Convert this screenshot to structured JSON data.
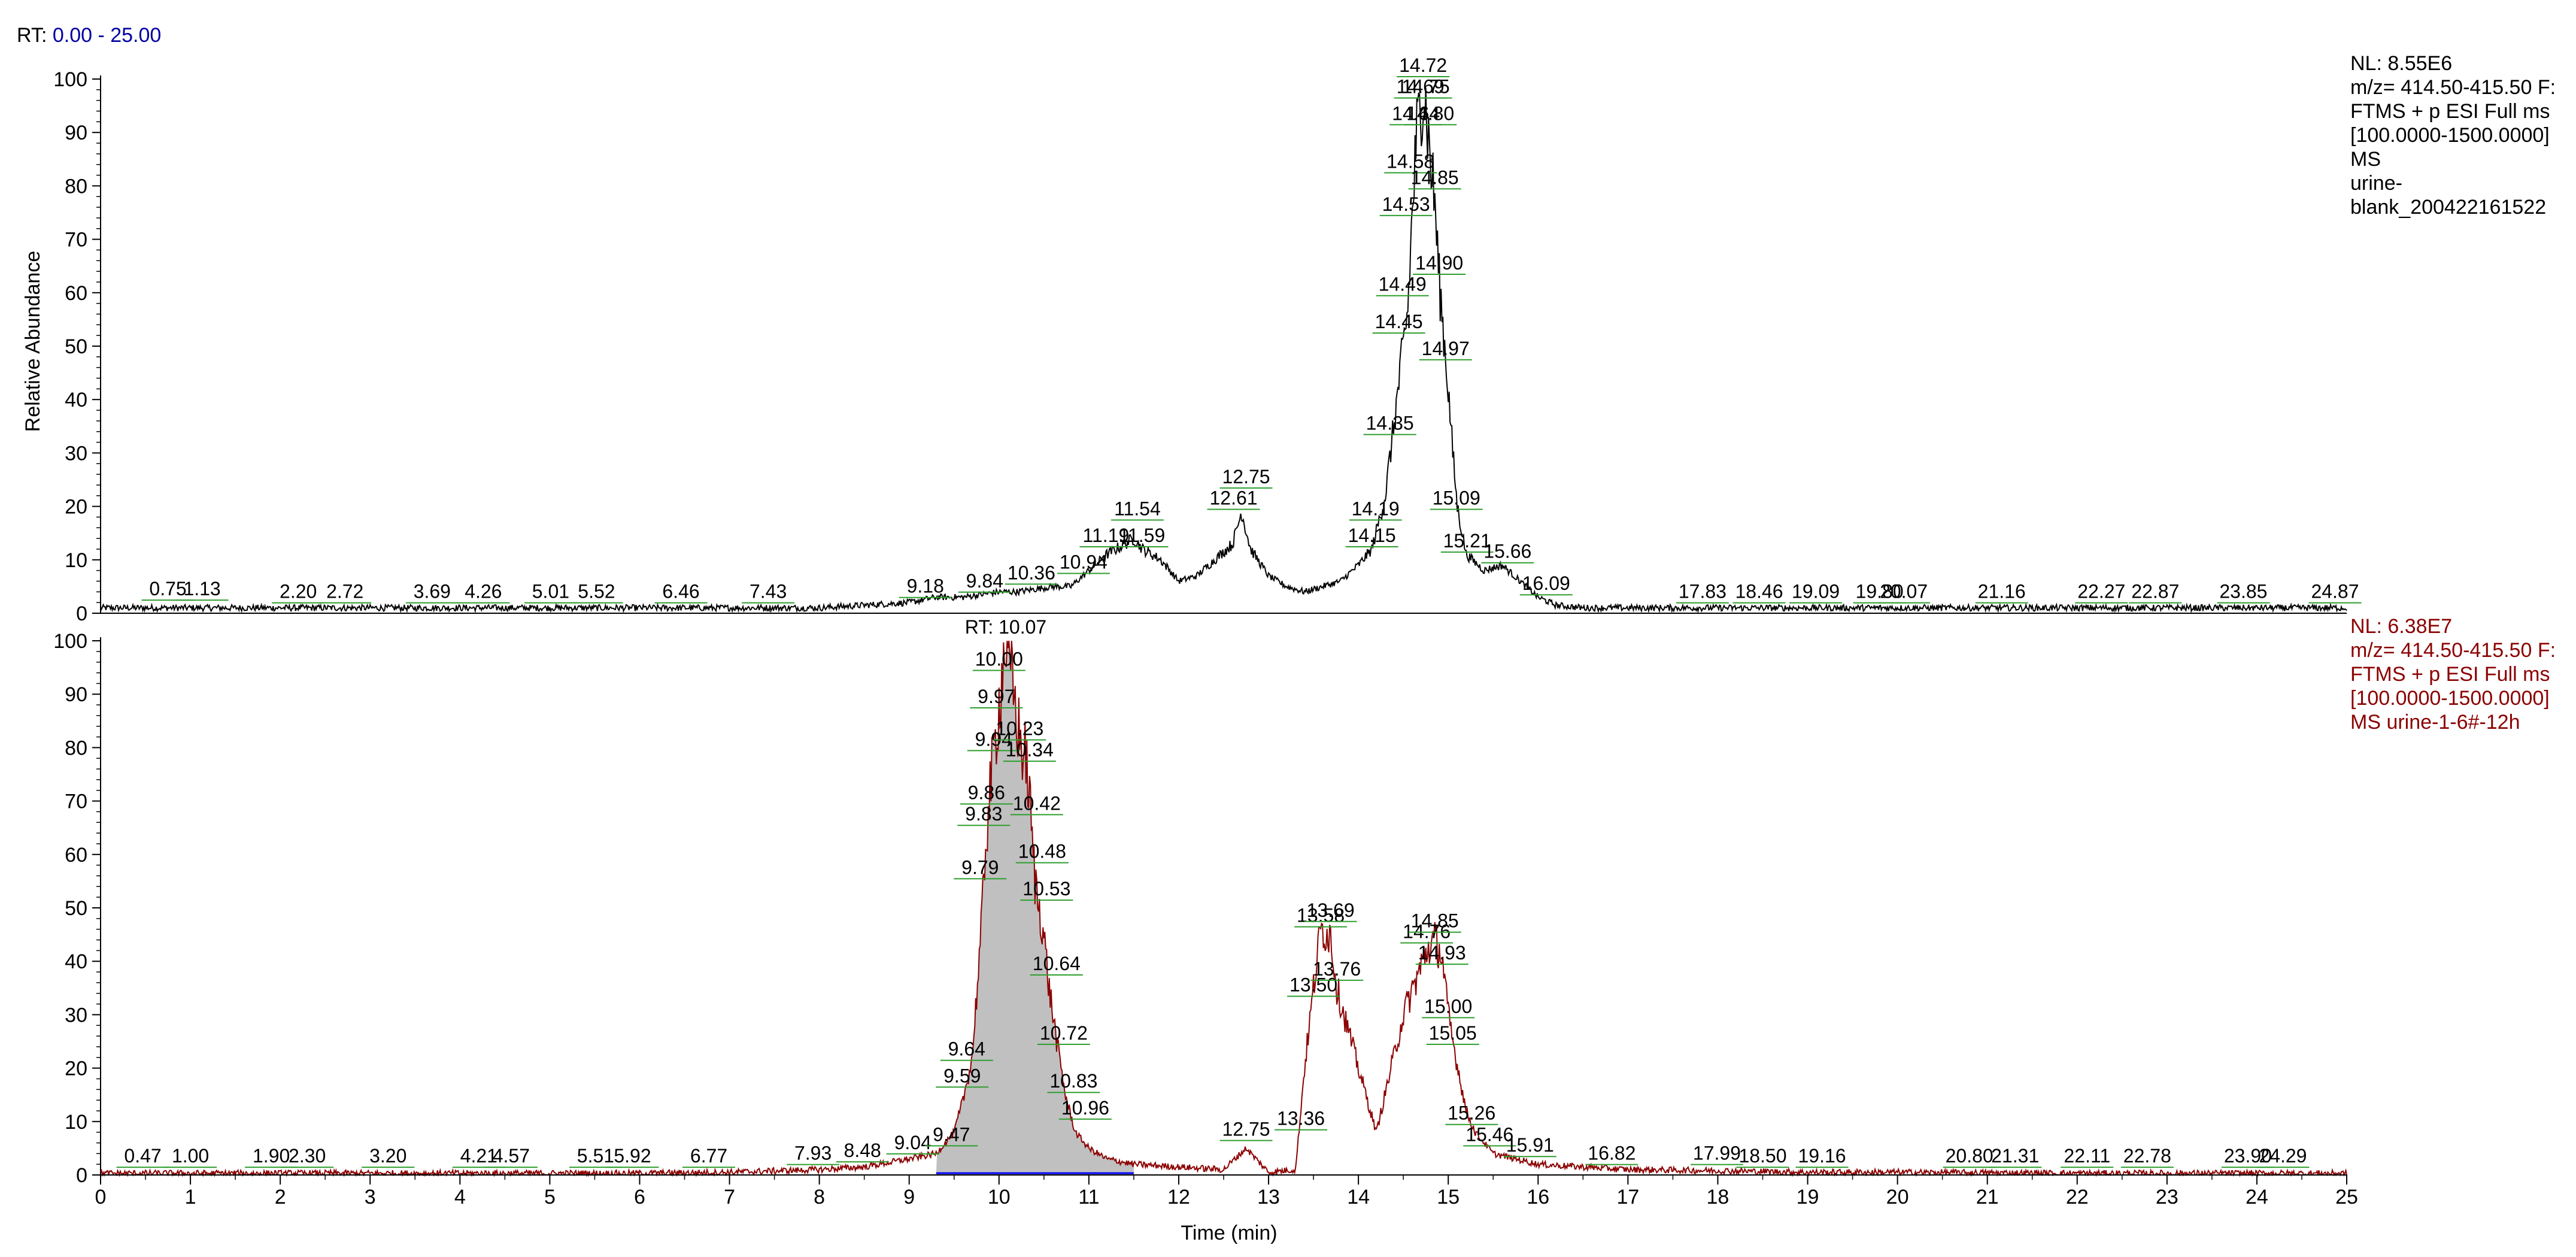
{
  "rt_range": {
    "label": "RT:",
    "value": "0.00 - 25.00"
  },
  "x_axis": {
    "label": "Time (min)",
    "min": 0,
    "max": 25,
    "ticks": [
      0,
      1,
      2,
      3,
      4,
      5,
      6,
      7,
      8,
      9,
      10,
      11,
      12,
      13,
      14,
      15,
      16,
      17,
      18,
      19,
      20,
      21,
      22,
      23,
      24,
      25
    ]
  },
  "y_axis": {
    "label": "Relative Abundance",
    "ticks": [
      0,
      10,
      20,
      30,
      40,
      50,
      60,
      70,
      80,
      90,
      100
    ]
  },
  "colors": {
    "trace1": "#000000",
    "trace2": "#8b0000",
    "fill2": "#c0c0c0",
    "peaklabel_line": "#2e9e2e",
    "info2_text": "#8b0000",
    "rt_value": "#0000a0",
    "baseline2": "#0000ff"
  },
  "trace1_info": {
    "nl": "NL: 8.55E6",
    "lines": [
      "m/z= 414.50-415.50 F:",
      "FTMS + p ESI Full ms",
      "[100.0000-1500.0000]",
      "MS",
      "urine-",
      "blank_200422161522"
    ]
  },
  "trace2_info": {
    "nl": "NL: 6.38E7",
    "lines": [
      "m/z= 414.50-415.50 F:",
      "FTMS + p ESI Full ms",
      "[100.0000-1500.0000]",
      "MS urine-1-6#-12h"
    ]
  },
  "trace2_peak_rt": "RT: 10.07",
  "chart_data": [
    {
      "type": "line",
      "name": "urine-blank_200422161522",
      "xlabel": "Time (min)",
      "ylabel": "Relative Abundance",
      "xlim": [
        0,
        25
      ],
      "ylim": [
        0,
        100
      ],
      "x": [
        0,
        0.5,
        1,
        1.5,
        2,
        2.5,
        3,
        3.5,
        4,
        4.5,
        5,
        5.5,
        6,
        6.5,
        7,
        7.5,
        8,
        8.5,
        9,
        9.3,
        9.6,
        9.8,
        10,
        10.2,
        10.4,
        10.6,
        10.8,
        11,
        11.2,
        11.4,
        11.5,
        11.6,
        11.8,
        12,
        12.2,
        12.4,
        12.6,
        12.7,
        12.8,
        13,
        13.2,
        13.4,
        13.6,
        13.8,
        14,
        14.15,
        14.3,
        14.4,
        14.5,
        14.55,
        14.6,
        14.65,
        14.7,
        14.72,
        14.75,
        14.8,
        14.85,
        14.9,
        14.95,
        15,
        15.05,
        15.1,
        15.2,
        15.4,
        15.6,
        15.8,
        16,
        16.2,
        16.5,
        17,
        18,
        19,
        20,
        21,
        22,
        23,
        24,
        25
      ],
      "y": [
        1,
        1,
        1,
        1,
        1,
        1,
        1,
        1,
        1,
        1,
        1,
        1,
        1,
        1,
        1,
        1,
        1,
        1.5,
        2,
        3,
        3,
        3.5,
        4,
        4,
        4.5,
        5,
        5,
        8,
        11,
        13,
        14,
        12,
        10,
        6,
        7,
        10,
        13,
        19,
        12,
        7,
        5,
        4,
        5,
        6,
        9,
        12,
        22,
        36,
        50,
        57,
        75,
        90,
        96,
        98,
        95,
        85,
        77,
        62,
        52,
        42,
        30,
        20,
        11,
        8,
        9,
        6,
        3,
        1.5,
        1,
        1,
        1,
        1,
        1,
        1,
        1,
        1,
        1,
        1
      ],
      "peak_labels": [
        {
          "rt": 0.75,
          "y": 2
        },
        {
          "rt": 1.13,
          "y": 2
        },
        {
          "rt": 2.2,
          "y": 1.5
        },
        {
          "rt": 2.72,
          "y": 1.5
        },
        {
          "rt": 3.69,
          "y": 1.5
        },
        {
          "rt": 4.26,
          "y": 1.5
        },
        {
          "rt": 5.01,
          "y": 1.5
        },
        {
          "rt": 5.52,
          "y": 1.5
        },
        {
          "rt": 6.46,
          "y": 1.5
        },
        {
          "rt": 7.43,
          "y": 1.5
        },
        {
          "rt": 9.18,
          "y": 2.5
        },
        {
          "rt": 9.84,
          "y": 3.5
        },
        {
          "rt": 10.36,
          "y": 5
        },
        {
          "rt": 10.94,
          "y": 7
        },
        {
          "rt": 11.19,
          "y": 12
        },
        {
          "rt": 11.54,
          "y": 17
        },
        {
          "rt": 11.59,
          "y": 12
        },
        {
          "rt": 12.61,
          "y": 19
        },
        {
          "rt": 12.75,
          "y": 23
        },
        {
          "rt": 14.15,
          "y": 12
        },
        {
          "rt": 14.19,
          "y": 17
        },
        {
          "rt": 14.35,
          "y": 33
        },
        {
          "rt": 14.45,
          "y": 52
        },
        {
          "rt": 14.49,
          "y": 59
        },
        {
          "rt": 14.53,
          "y": 74
        },
        {
          "rt": 14.58,
          "y": 82
        },
        {
          "rt": 14.64,
          "y": 91
        },
        {
          "rt": 14.69,
          "y": 96
        },
        {
          "rt": 14.72,
          "y": 100
        },
        {
          "rt": 14.75,
          "y": 96
        },
        {
          "rt": 14.8,
          "y": 91
        },
        {
          "rt": 14.85,
          "y": 79
        },
        {
          "rt": 14.9,
          "y": 63
        },
        {
          "rt": 14.97,
          "y": 47
        },
        {
          "rt": 15.09,
          "y": 19
        },
        {
          "rt": 15.21,
          "y": 11
        },
        {
          "rt": 15.66,
          "y": 9
        },
        {
          "rt": 16.09,
          "y": 3
        },
        {
          "rt": 17.83,
          "y": 1.5
        },
        {
          "rt": 18.46,
          "y": 1.5
        },
        {
          "rt": 19.09,
          "y": 1.5
        },
        {
          "rt": 19.8,
          "y": 1.5
        },
        {
          "rt": 20.07,
          "y": 1.5
        },
        {
          "rt": 21.16,
          "y": 1.5
        },
        {
          "rt": 22.27,
          "y": 1.5
        },
        {
          "rt": 22.87,
          "y": 1.5
        },
        {
          "rt": 23.85,
          "y": 1.5
        },
        {
          "rt": 24.87,
          "y": 1.5
        }
      ]
    },
    {
      "type": "area",
      "name": "urine-1-6#-12h",
      "xlabel": "Time (min)",
      "ylabel": "Relative Abundance",
      "xlim": [
        0,
        25
      ],
      "ylim": [
        0,
        100
      ],
      "x": [
        0,
        1,
        2,
        3,
        4,
        5,
        6,
        7,
        8,
        8.5,
        9,
        9.3,
        9.5,
        9.6,
        9.7,
        9.8,
        9.85,
        9.9,
        9.95,
        10,
        10.07,
        10.15,
        10.2,
        10.25,
        10.3,
        10.35,
        10.4,
        10.45,
        10.5,
        10.55,
        10.65,
        10.75,
        10.85,
        11,
        11.2,
        11.5,
        12,
        12.5,
        12.75,
        13,
        13.3,
        13.4,
        13.5,
        13.58,
        13.69,
        13.76,
        14,
        14.2,
        14.5,
        14.76,
        14.85,
        14.93,
        15,
        15.05,
        15.2,
        15.3,
        15.5,
        16,
        16.5,
        17,
        18,
        19,
        20,
        21,
        22,
        23,
        24,
        25
      ],
      "y": [
        0.3,
        0.3,
        0.3,
        0.3,
        0.3,
        0.3,
        0.3,
        0.5,
        1,
        1.5,
        3,
        4,
        8,
        14,
        22,
        45,
        62,
        72,
        80,
        88,
        100,
        92,
        85,
        80,
        78,
        68,
        55,
        50,
        45,
        36,
        24,
        14,
        8,
        5,
        3,
        2,
        1.5,
        1,
        5,
        0.5,
        1,
        20,
        35,
        46,
        45,
        35,
        20,
        8,
        30,
        42,
        44,
        41,
        30,
        25,
        12,
        8,
        4,
        2,
        1.5,
        1,
        0.8,
        0.5,
        0.5,
        0.4,
        0.3,
        0.3,
        0.3,
        0.3
      ],
      "peak_labels": [
        {
          "rt": 0.47,
          "y": 1
        },
        {
          "rt": 1.0,
          "y": 1
        },
        {
          "rt": 1.9,
          "y": 1
        },
        {
          "rt": 2.3,
          "y": 1
        },
        {
          "rt": 3.2,
          "y": 1
        },
        {
          "rt": 4.21,
          "y": 1
        },
        {
          "rt": 4.57,
          "y": 1
        },
        {
          "rt": 5.51,
          "y": 1
        },
        {
          "rt": 5.92,
          "y": 1
        },
        {
          "rt": 6.77,
          "y": 1
        },
        {
          "rt": 7.93,
          "y": 1.5
        },
        {
          "rt": 8.48,
          "y": 2
        },
        {
          "rt": 9.04,
          "y": 3.5
        },
        {
          "rt": 9.47,
          "y": 5
        },
        {
          "rt": 9.59,
          "y": 16
        },
        {
          "rt": 9.64,
          "y": 21
        },
        {
          "rt": 9.79,
          "y": 55
        },
        {
          "rt": 9.83,
          "y": 65
        },
        {
          "rt": 9.86,
          "y": 69
        },
        {
          "rt": 9.94,
          "y": 79
        },
        {
          "rt": 9.97,
          "y": 87
        },
        {
          "rt": 10.0,
          "y": 94
        },
        {
          "rt": 10.23,
          "y": 81
        },
        {
          "rt": 10.34,
          "y": 77
        },
        {
          "rt": 10.42,
          "y": 67
        },
        {
          "rt": 10.48,
          "y": 58
        },
        {
          "rt": 10.53,
          "y": 51
        },
        {
          "rt": 10.64,
          "y": 37
        },
        {
          "rt": 10.72,
          "y": 24
        },
        {
          "rt": 10.83,
          "y": 15
        },
        {
          "rt": 10.96,
          "y": 10
        },
        {
          "rt": 12.75,
          "y": 6
        },
        {
          "rt": 13.36,
          "y": 8
        },
        {
          "rt": 13.5,
          "y": 33
        },
        {
          "rt": 13.58,
          "y": 46
        },
        {
          "rt": 13.69,
          "y": 47
        },
        {
          "rt": 13.76,
          "y": 36
        },
        {
          "rt": 14.76,
          "y": 43
        },
        {
          "rt": 14.85,
          "y": 45
        },
        {
          "rt": 14.93,
          "y": 39
        },
        {
          "rt": 15.0,
          "y": 29
        },
        {
          "rt": 15.05,
          "y": 24
        },
        {
          "rt": 15.26,
          "y": 9
        },
        {
          "rt": 15.46,
          "y": 5
        },
        {
          "rt": 15.91,
          "y": 3
        },
        {
          "rt": 16.82,
          "y": 1.5
        },
        {
          "rt": 17.99,
          "y": 1.5
        },
        {
          "rt": 18.5,
          "y": 1
        },
        {
          "rt": 19.16,
          "y": 1
        },
        {
          "rt": 20.8,
          "y": 1
        },
        {
          "rt": 21.31,
          "y": 1
        },
        {
          "rt": 22.11,
          "y": 1
        },
        {
          "rt": 22.78,
          "y": 1
        },
        {
          "rt": 23.9,
          "y": 1
        },
        {
          "rt": 24.29,
          "y": 1
        }
      ]
    }
  ]
}
